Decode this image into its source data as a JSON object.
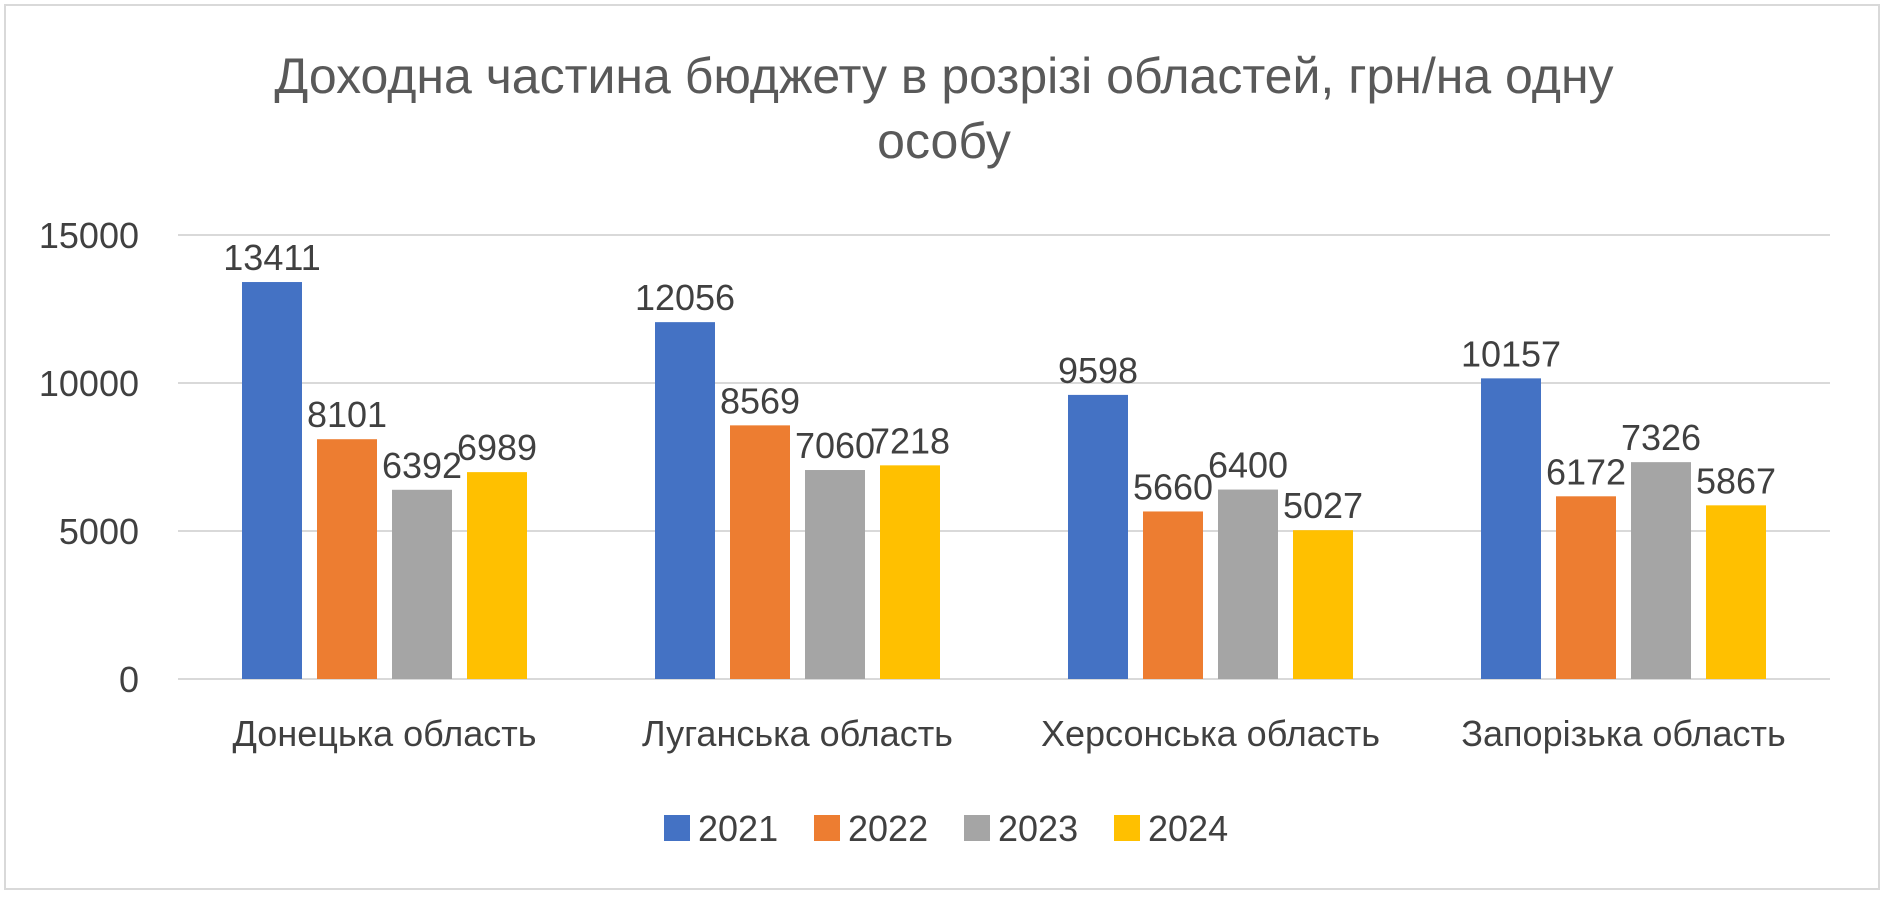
{
  "chart_data": {
    "type": "bar",
    "title": "Доходна частина бюджету в розрізі областей, грн/на одну особу",
    "title_lines": [
      "Доходна частина бюджету в розрізі областей, грн/на одну",
      "особу"
    ],
    "categories": [
      "Донецька область",
      "Луганська область",
      "Херсонська область",
      "Запорізька область"
    ],
    "series": [
      {
        "name": "2021",
        "color": "#4472c4",
        "values": [
          13411,
          12056,
          9598,
          10157
        ]
      },
      {
        "name": "2022",
        "color": "#ed7d31",
        "values": [
          8101,
          8569,
          5660,
          6172
        ]
      },
      {
        "name": "2023",
        "color": "#a5a5a5",
        "values": [
          6392,
          7060,
          6400,
          7326
        ]
      },
      {
        "name": "2024",
        "color": "#ffc000",
        "values": [
          6989,
          7218,
          5027,
          5867
        ]
      }
    ],
    "yticks": [
      "0",
      "5000",
      "10000",
      "15000"
    ],
    "ylim": [
      0,
      15000
    ],
    "grid": true,
    "legend_position": "bottom",
    "data_labels": true
  }
}
